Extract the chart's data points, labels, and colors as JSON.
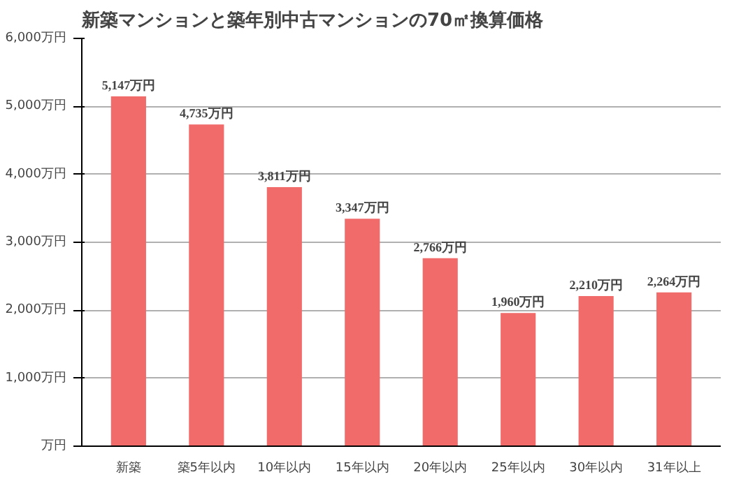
{
  "chart_data": {
    "type": "bar",
    "title": "新築マンションと築年別中古マンションの70㎡換算価格",
    "categories": [
      "新築",
      "築5年以内",
      "10年以内",
      "15年以内",
      "20年以内",
      "25年以内",
      "30年以内",
      "31年以上"
    ],
    "values": [
      5147,
      4735,
      3811,
      3347,
      2766,
      1960,
      2210,
      2264
    ],
    "value_labels": [
      "5,147万円",
      "4,735万円",
      "3,811万円",
      "3,347万円",
      "2,766万円",
      "1,960万円",
      "2,210万円",
      "2,264万円"
    ],
    "color": "#f26b6b",
    "ylim": [
      0,
      6000
    ],
    "yticks": [
      {
        "value": 0,
        "label": "万円"
      },
      {
        "value": 1000,
        "label": "1,000万円"
      },
      {
        "value": 2000,
        "label": "2,000万円"
      },
      {
        "value": 3000,
        "label": "3,000万円"
      },
      {
        "value": 4000,
        "label": "4,000万円"
      },
      {
        "value": 5000,
        "label": "5,000万円"
      },
      {
        "value": 6000,
        "label": "6,000万円"
      }
    ],
    "grid": "y"
  }
}
